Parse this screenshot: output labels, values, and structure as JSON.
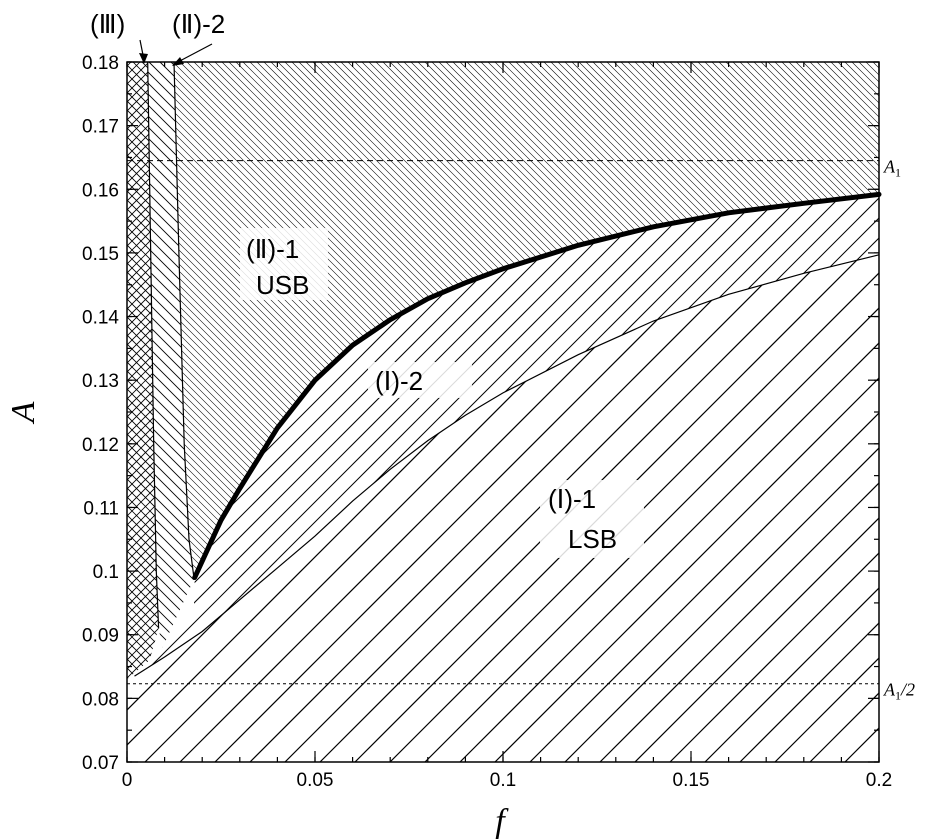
{
  "chart_data": {
    "type": "area",
    "xlabel": "f",
    "ylabel": "A",
    "xlim": [
      0,
      0.2
    ],
    "ylim": [
      0.07,
      0.18
    ],
    "x_ticks": [
      "0",
      "0.05",
      "0.1",
      "0.15",
      "0.2"
    ],
    "y_ticks": [
      "0.07",
      "0.08",
      "0.09",
      "0.1",
      "0.11",
      "0.12",
      "0.13",
      "0.14",
      "0.15",
      "0.16",
      "0.17",
      "0.18"
    ],
    "reference_lines": [
      {
        "label": "A1",
        "label_main": "A",
        "label_sub": "1",
        "label_rest": "",
        "y": 0.1645,
        "style": "dashed"
      },
      {
        "label": "A1/2",
        "label_main": "A",
        "label_sub": "1",
        "label_rest": "/2",
        "y": 0.0823,
        "style": "dotted"
      }
    ],
    "boundaries": {
      "thick_USB_boundary": {
        "x": [
          0.018,
          0.025,
          0.03,
          0.04,
          0.05,
          0.06,
          0.07,
          0.08,
          0.09,
          0.1,
          0.12,
          0.14,
          0.16,
          0.18,
          0.2
        ],
        "y": [
          0.099,
          0.108,
          0.113,
          0.1225,
          0.13,
          0.1355,
          0.1395,
          0.1428,
          0.1453,
          0.1475,
          0.1512,
          0.1541,
          0.1563,
          0.1578,
          0.1592
        ]
      },
      "LSB_upper_boundary": {
        "x": [
          0.002,
          0.01,
          0.02,
          0.03,
          0.04,
          0.05,
          0.06,
          0.07,
          0.08,
          0.09,
          0.1,
          0.12,
          0.14,
          0.16,
          0.18,
          0.2
        ],
        "y": [
          0.0835,
          0.0865,
          0.0905,
          0.0955,
          0.1005,
          0.1055,
          0.111,
          0.116,
          0.1205,
          0.1245,
          0.128,
          0.134,
          0.1393,
          0.1435,
          0.1468,
          0.1497
        ]
      },
      "region_III_II2_boundary": {
        "x": [
          0.0055,
          0.0063,
          0.0071,
          0.0078,
          0.0084
        ],
        "y": [
          0.18,
          0.15,
          0.12,
          0.1,
          0.091
        ]
      },
      "region_II2_II1_boundary": {
        "x": [
          0.0125,
          0.0138,
          0.0152,
          0.0165,
          0.0178
        ],
        "y": [
          0.18,
          0.15,
          0.12,
          0.105,
          0.099
        ]
      }
    },
    "regions": [
      {
        "name_num": "(Ⅲ)",
        "name_suffix": "",
        "line2": "",
        "pattern": "crosshatch"
      },
      {
        "name_num": "(Ⅱ)",
        "name_suffix": "-2",
        "line2": "",
        "pattern": "hatch"
      },
      {
        "name_num": "(Ⅱ)",
        "name_suffix": "-1",
        "line2": "USB",
        "pattern": "dense-hatch"
      },
      {
        "name_num": "(Ⅰ)",
        "name_suffix": "-2",
        "line2": "",
        "pattern": "medium-hatch"
      },
      {
        "name_num": "(Ⅰ)",
        "name_suffix": "-1",
        "line2": "LSB",
        "pattern": "wide-hatch"
      }
    ]
  }
}
